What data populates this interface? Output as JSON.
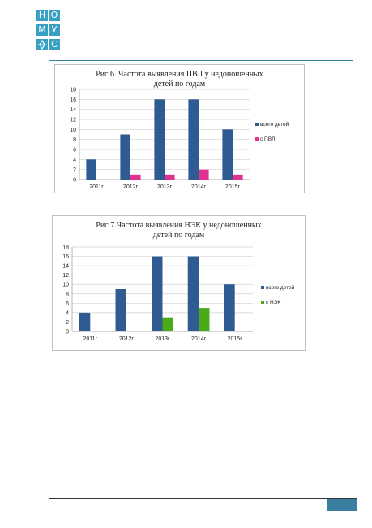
{
  "logo": {
    "letters": [
      "Н",
      "О",
      "М",
      "У",
      "",
      "С"
    ],
    "color": "#3aa0c3"
  },
  "charts": [
    {
      "title_line1": "Рис 6. Частота выявления ПВЛ у недоношенных",
      "title_line2": "детей по годам",
      "chart_data": {
        "type": "bar",
        "categories": [
          "2011г",
          "2012г",
          "2013г",
          "2014г",
          "2015г"
        ],
        "ylim": [
          0,
          18
        ],
        "yticks": [
          0,
          2,
          4,
          6,
          8,
          10,
          12,
          14,
          16,
          18
        ],
        "grid": true,
        "legend_position": "right",
        "series": [
          {
            "name": "всего детей",
            "values": [
              4,
              9,
              16,
              16,
              10
            ],
            "color": "#2f5b93"
          },
          {
            "name": "с ПВЛ",
            "values": [
              0,
              1,
              1,
              2,
              1
            ],
            "color": "#e0338f"
          }
        ]
      }
    },
    {
      "title_line1": "Рис 7.Частота выявления НЭК у недоношенных",
      "title_line2": "детей по годам",
      "chart_data": {
        "type": "bar",
        "categories": [
          "2011г",
          "2012г",
          "2013г",
          "2014г",
          "2015г"
        ],
        "ylim": [
          0,
          18
        ],
        "yticks": [
          0,
          2,
          4,
          6,
          8,
          10,
          12,
          14,
          16,
          18
        ],
        "grid": true,
        "legend_position": "right",
        "series": [
          {
            "name": "всего детей",
            "values": [
              4,
              9,
              16,
              16,
              10
            ],
            "color": "#2f5b93"
          },
          {
            "name": "с НЭК",
            "values": [
              0,
              0,
              3,
              5,
              0
            ],
            "color": "#4aaa1a"
          }
        ]
      }
    }
  ],
  "footer": {
    "accent": "#3a7fa0"
  }
}
